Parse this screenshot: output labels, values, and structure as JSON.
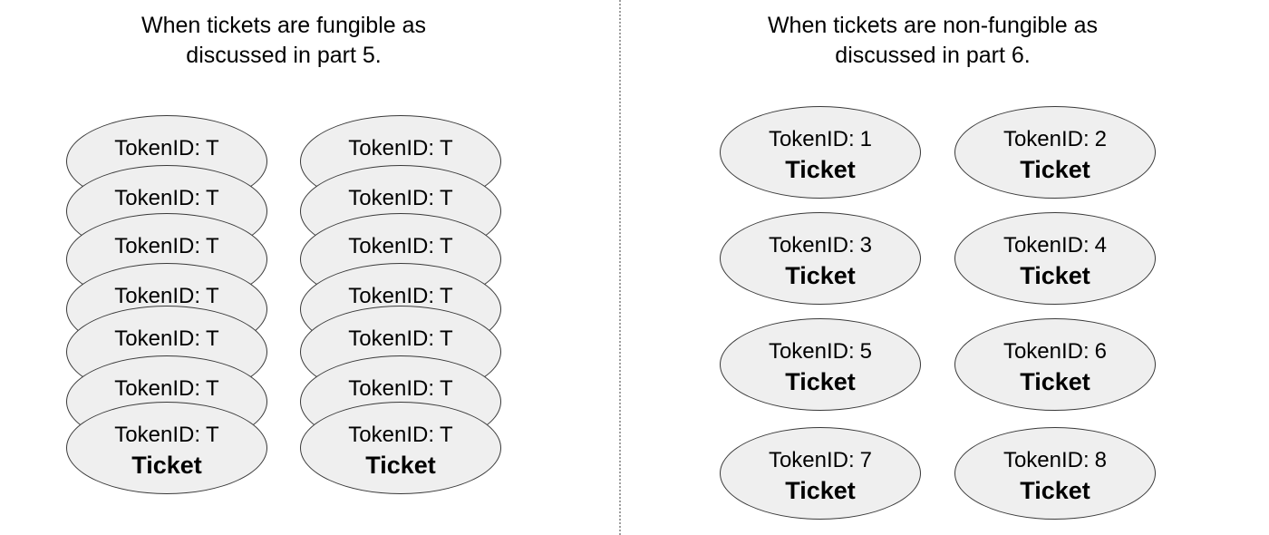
{
  "left_panel": {
    "title_line1": "When tickets are fungible as",
    "title_line2": "discussed in part 5.",
    "stacks": [
      {
        "layers": [
          {
            "label": "TokenID:",
            "id": "T"
          },
          {
            "label": "TokenID:",
            "id": "T"
          },
          {
            "label": "TokenID:",
            "id": "T"
          },
          {
            "label": "TokenID:",
            "id": "T"
          },
          {
            "label": "TokenID:",
            "id": "T"
          },
          {
            "label": "TokenID:",
            "id": "T"
          },
          {
            "label": "TokenID:",
            "id": "T",
            "ticket": "Ticket"
          }
        ]
      },
      {
        "layers": [
          {
            "label": "TokenID:",
            "id": "T"
          },
          {
            "label": "TokenID:",
            "id": "T"
          },
          {
            "label": "TokenID:",
            "id": "T"
          },
          {
            "label": "TokenID:",
            "id": "T"
          },
          {
            "label": "TokenID:",
            "id": "T"
          },
          {
            "label": "TokenID:",
            "id": "T"
          },
          {
            "label": "TokenID:",
            "id": "T",
            "ticket": "Ticket"
          }
        ]
      }
    ]
  },
  "right_panel": {
    "title_line1": "When tickets are non-fungible as",
    "title_line2": "discussed in part 6.",
    "tokens": [
      {
        "label": "TokenID:",
        "id": "1",
        "ticket": "Ticket"
      },
      {
        "label": "TokenID:",
        "id": "2",
        "ticket": "Ticket"
      },
      {
        "label": "TokenID:",
        "id": "3",
        "ticket": "Ticket"
      },
      {
        "label": "TokenID:",
        "id": "4",
        "ticket": "Ticket"
      },
      {
        "label": "TokenID:",
        "id": "5",
        "ticket": "Ticket"
      },
      {
        "label": "TokenID:",
        "id": "6",
        "ticket": "Ticket"
      },
      {
        "label": "TokenID:",
        "id": "7",
        "ticket": "Ticket"
      },
      {
        "label": "TokenID:",
        "id": "8",
        "ticket": "Ticket"
      }
    ]
  }
}
